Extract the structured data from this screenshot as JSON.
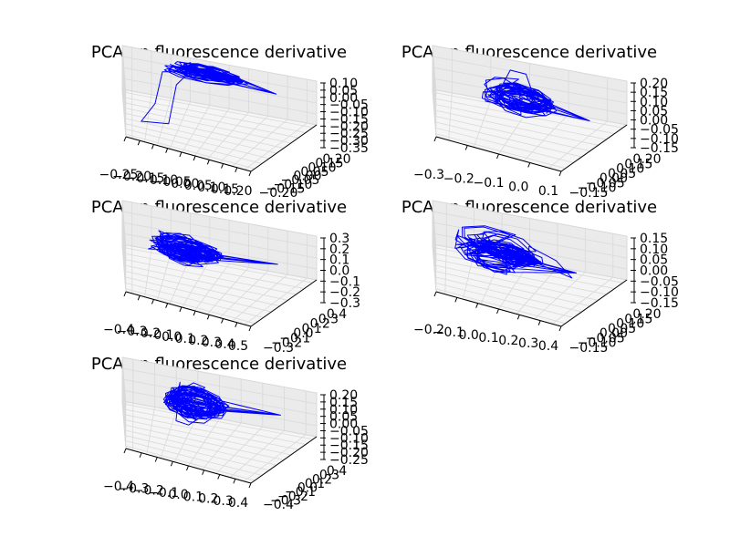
{
  "chart_data": [
    {
      "type": "line",
      "projection": "3d",
      "title": "PCA on fluorescence derivative",
      "color": "#0000ff",
      "x_ticks": [
        "−0.25",
        "−0.20",
        "−0.15",
        "−0.10",
        "−0.05",
        "0.00",
        "0.05",
        "0.10",
        "0.15",
        "0.20"
      ],
      "y_ticks": [
        "−0.20",
        "−0.15",
        "−0.10",
        "−0.05",
        "0.00",
        "0.05",
        "0.10",
        "0.15",
        "0.20"
      ],
      "z_ticks": [
        "0.10",
        "0.05",
        "0.00",
        "−0.05",
        "−0.10",
        "−0.15",
        "−0.20",
        "−0.25",
        "−0.30",
        "−0.35"
      ],
      "xlim": [
        -0.25,
        0.2
      ],
      "ylim": [
        -0.2,
        0.2
      ],
      "zlim": [
        -0.35,
        0.1
      ],
      "trajectory": {
        "loops": 26,
        "center": [
          -0.02,
          0.04,
          0.02
        ],
        "spread": [
          0.09,
          0.03,
          0.04
        ],
        "spike": [
          0.17,
          0.02,
          0.0
        ],
        "excursion": {
          "points": [
            [
              -0.14,
              -0.02,
              0.02
            ],
            [
              -0.16,
              -0.04,
              -0.2
            ],
            [
              -0.2,
              -0.06,
              -0.33
            ],
            [
              -0.12,
              -0.04,
              -0.32
            ],
            [
              -0.1,
              -0.02,
              -0.05
            ]
          ]
        }
      }
    },
    {
      "type": "line",
      "projection": "3d",
      "title": "PCA on fluorescence derivative",
      "color": "#0000ff",
      "x_ticks": [
        "−0.3",
        "−0.2",
        "−0.1",
        "0.0",
        "0.1"
      ],
      "y_ticks": [
        "−0.15",
        "−0.10",
        "−0.05",
        "0.00",
        "0.05",
        "0.10",
        "0.15",
        "0.20"
      ],
      "z_ticks": [
        "0.20",
        "0.15",
        "0.10",
        "0.05",
        "0.00",
        "−0.05",
        "−0.10",
        "−0.15"
      ],
      "xlim": [
        -0.3,
        0.15
      ],
      "ylim": [
        -0.15,
        0.2
      ],
      "zlim": [
        -0.15,
        0.2
      ],
      "trajectory": {
        "loops": 24,
        "center": [
          -0.05,
          0.02,
          0.04
        ],
        "spread": [
          0.09,
          0.03,
          0.07
        ],
        "spike": [
          0.14,
          0.02,
          0.0
        ],
        "excursion": {
          "points": [
            [
              -0.1,
              0.0,
              0.12
            ],
            [
              -0.08,
              0.0,
              0.2
            ],
            [
              -0.04,
              0.02,
              0.18
            ],
            [
              -0.02,
              0.03,
              0.05
            ]
          ]
        }
      }
    },
    {
      "type": "line",
      "projection": "3d",
      "title": "PCA on fluorescence derivative",
      "color": "#0000ff",
      "x_ticks": [
        "−0.4",
        "−0.3",
        "−0.2",
        "−0.1",
        "0.0",
        "0.1",
        "0.2",
        "0.3",
        "0.4",
        "0.5"
      ],
      "y_ticks": [
        "−0.3",
        "−0.2",
        "−0.1",
        "0.0",
        "0.1",
        "0.2",
        "0.3",
        "0.4"
      ],
      "z_ticks": [
        "0.3",
        "0.2",
        "0.1",
        "0.0",
        "−0.1",
        "−0.2",
        "−0.3"
      ],
      "xlim": [
        -0.4,
        0.5
      ],
      "ylim": [
        -0.3,
        0.4
      ],
      "zlim": [
        -0.3,
        0.3
      ],
      "trajectory": {
        "loops": 30,
        "center": [
          -0.05,
          0.05,
          0.0
        ],
        "spread": [
          0.17,
          0.06,
          0.09
        ],
        "spike": [
          0.45,
          0.08,
          0.03
        ],
        "excursion": {
          "points": [
            [
              -0.15,
              0.02,
              0.06
            ],
            [
              -0.2,
              0.0,
              0.16
            ],
            [
              -0.1,
              0.04,
              0.1
            ]
          ]
        }
      }
    },
    {
      "type": "line",
      "projection": "3d",
      "title": "PCA on fluorescence derivative",
      "color": "#0000ff",
      "x_ticks": [
        "−0.2",
        "−0.1",
        "0.0",
        "0.1",
        "0.2",
        "0.3",
        "0.4"
      ],
      "y_ticks": [
        "−0.15",
        "−0.10",
        "−0.05",
        "0.00",
        "0.05",
        "0.10",
        "0.15",
        "0.20"
      ],
      "z_ticks": [
        "0.15",
        "0.10",
        "0.05",
        "0.00",
        "−0.05",
        "−0.10",
        "−0.15"
      ],
      "xlim": [
        -0.2,
        0.4
      ],
      "ylim": [
        -0.15,
        0.2
      ],
      "zlim": [
        -0.15,
        0.15
      ],
      "trajectory": {
        "loops": 30,
        "center": [
          0.05,
          0.02,
          0.0
        ],
        "spread": [
          0.14,
          0.06,
          0.06
        ],
        "spike": [
          0.33,
          0.03,
          -0.03
        ],
        "excursion": {
          "points": [
            [
              0.15,
              0.04,
              0.04
            ],
            [
              0.25,
              0.04,
              0.0
            ],
            [
              0.32,
              0.02,
              -0.05
            ],
            [
              0.2,
              0.02,
              -0.02
            ]
          ]
        }
      }
    },
    {
      "type": "line",
      "projection": "3d",
      "title": "PCA on fluorescence derivative",
      "color": "#0000ff",
      "x_ticks": [
        "−0.4",
        "−0.3",
        "−0.2",
        "−0.1",
        "0.0",
        "0.1",
        "0.2",
        "0.3",
        "0.4"
      ],
      "y_ticks": [
        "−0.4",
        "−0.3",
        "−0.2",
        "−0.1",
        "0.0",
        "0.1",
        "0.2",
        "0.3",
        "0.4"
      ],
      "z_ticks": [
        "0.20",
        "0.15",
        "0.10",
        "0.05",
        "0.00",
        "−0.05",
        "−0.10",
        "−0.15",
        "−0.20",
        "−0.25"
      ],
      "xlim": [
        -0.4,
        0.4
      ],
      "ylim": [
        -0.4,
        0.4
      ],
      "zlim": [
        -0.25,
        0.2
      ],
      "trajectory": {
        "loops": 32,
        "center": [
          -0.05,
          0.04,
          0.0
        ],
        "spread": [
          0.13,
          0.07,
          0.1
        ],
        "spike": [
          0.36,
          0.06,
          0.03
        ],
        "excursion": {
          "points": [
            [
              -0.12,
              0.0,
              0.14
            ],
            [
              -0.14,
              0.0,
              -0.14
            ],
            [
              -0.08,
              0.02,
              -0.16
            ]
          ]
        }
      }
    }
  ]
}
